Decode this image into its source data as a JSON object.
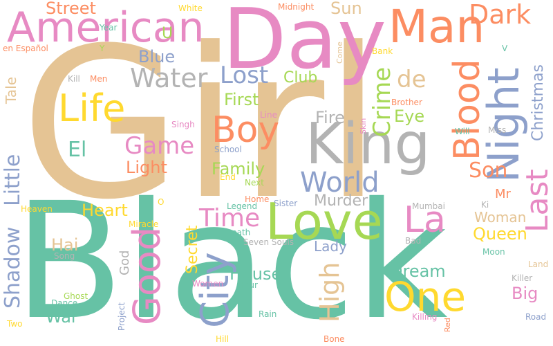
{
  "palette": [
    "#66c2a5",
    "#fc8d62",
    "#8da0cb",
    "#e78ac3",
    "#a6d854",
    "#ffd92f",
    "#e5c494",
    "#b3b3b3"
  ],
  "words": [
    {
      "text": "Girl",
      "color": "#e5c494"
    },
    {
      "text": "Black",
      "color": "#66c2a5"
    },
    {
      "text": "Day",
      "color": "#e78ac3"
    },
    {
      "text": "King",
      "color": "#b3b3b3"
    },
    {
      "text": "Love",
      "color": "#a6d854"
    },
    {
      "text": "American",
      "color": "#e78ac3"
    },
    {
      "text": "Man",
      "color": "#fc8d62"
    },
    {
      "text": "Dark",
      "color": "#fc8d62"
    },
    {
      "text": "Night",
      "color": "#8da0cb"
    },
    {
      "text": "Blood",
      "color": "#fc8d62"
    },
    {
      "text": "Last",
      "color": "#e78ac3"
    },
    {
      "text": "Life",
      "color": "#ffd92f"
    },
    {
      "text": "Boy",
      "color": "#fc8d62"
    },
    {
      "text": "City",
      "color": "#8da0cb"
    },
    {
      "text": "Good",
      "color": "#e78ac3"
    },
    {
      "text": "One",
      "color": "#ffd92f"
    },
    {
      "text": "La",
      "color": "#e78ac3"
    },
    {
      "text": "World",
      "color": "#8da0cb"
    },
    {
      "text": "Water",
      "color": "#b3b3b3"
    },
    {
      "text": "Lost",
      "color": "#8da0cb"
    },
    {
      "text": "Crime",
      "color": "#a6d854"
    },
    {
      "text": "Time",
      "color": "#e78ac3"
    },
    {
      "text": "Game",
      "color": "#e78ac3"
    },
    {
      "text": "Son",
      "color": "#fc8d62"
    },
    {
      "text": "High",
      "color": "#e5c494"
    },
    {
      "text": "Little",
      "color": "#8da0cb"
    },
    {
      "text": "Shadow",
      "color": "#8da0cb"
    },
    {
      "text": "Secret",
      "color": "#ffd92f"
    },
    {
      "text": "House",
      "color": "#66c2a5"
    },
    {
      "text": "Dream",
      "color": "#66c2a5"
    },
    {
      "text": "Queen",
      "color": "#ffd92f"
    },
    {
      "text": "Street",
      "color": "#fc8d62"
    },
    {
      "text": "Sun",
      "color": "#e5c494"
    },
    {
      "text": "Blue",
      "color": "#8da0cb"
    },
    {
      "text": "de",
      "color": "#e5c494"
    },
    {
      "text": "El",
      "color": "#66c2a5"
    },
    {
      "text": "First",
      "color": "#a6d854"
    },
    {
      "text": "Club",
      "color": "#a6d854"
    },
    {
      "text": "Fire",
      "color": "#b3b3b3"
    },
    {
      "text": "Eye",
      "color": "#a6d854"
    },
    {
      "text": "Light",
      "color": "#fc8d62"
    },
    {
      "text": "Family",
      "color": "#a6d854"
    },
    {
      "text": "Heart",
      "color": "#ffd92f"
    },
    {
      "text": "Murder",
      "color": "#b3b3b3"
    },
    {
      "text": "Woman",
      "color": "#e5c494"
    },
    {
      "text": "Lady",
      "color": "#8da0cb"
    },
    {
      "text": "Hai",
      "color": "#e5c494"
    },
    {
      "text": "Big",
      "color": "#e78ac3"
    },
    {
      "text": "War",
      "color": "#66c2a5"
    },
    {
      "text": "Christmas",
      "color": "#8da0cb"
    },
    {
      "text": "Tale",
      "color": "#e5c494"
    },
    {
      "text": "U",
      "color": "#a6d854"
    },
    {
      "text": "Mr",
      "color": "#fc8d62"
    },
    {
      "text": "God",
      "color": "#b3b3b3"
    },
    {
      "text": "White",
      "color": "#ffd92f"
    },
    {
      "text": "Midnight",
      "color": "#fc8d62"
    },
    {
      "text": "Year",
      "color": "#66c2a5"
    },
    {
      "text": "en Español",
      "color": "#fc8d62"
    },
    {
      "text": "Y",
      "color": "#a6d854"
    },
    {
      "text": "Come",
      "color": "#e5c494"
    },
    {
      "text": "Bank",
      "color": "#ffd92f"
    },
    {
      "text": "V",
      "color": "#66c2a5"
    },
    {
      "text": "Kill",
      "color": "#b3b3b3"
    },
    {
      "text": "Men",
      "color": "#fc8d62"
    },
    {
      "text": "Brother",
      "color": "#fc8d62"
    },
    {
      "text": "Line",
      "color": "#e78ac3"
    },
    {
      "text": "Skin",
      "color": "#e78ac3"
    },
    {
      "text": "Singh",
      "color": "#e78ac3"
    },
    {
      "text": "Will",
      "color": "#66c2a5"
    },
    {
      "text": "Miss",
      "color": "#b3b3b3"
    },
    {
      "text": "School",
      "color": "#8da0cb"
    },
    {
      "text": "End",
      "color": "#ffd92f"
    },
    {
      "text": "Next",
      "color": "#a6d854"
    },
    {
      "text": "Home",
      "color": "#fc8d62"
    },
    {
      "text": "Sister",
      "color": "#8da0cb"
    },
    {
      "text": "Heaven",
      "color": "#ffd92f"
    },
    {
      "text": "O",
      "color": "#ffd92f"
    },
    {
      "text": "Legend",
      "color": "#66c2a5"
    },
    {
      "text": "Mumbai",
      "color": "#b3b3b3"
    },
    {
      "text": "Ki",
      "color": "#b3b3b3"
    },
    {
      "text": "Miracle",
      "color": "#ffd92f"
    },
    {
      "text": "Death",
      "color": "#66c2a5"
    },
    {
      "text": "Seven Souls",
      "color": "#b3b3b3"
    },
    {
      "text": "Bad",
      "color": "#b3b3b3"
    },
    {
      "text": "Moon",
      "color": "#66c2a5"
    },
    {
      "text": "Song",
      "color": "#b3b3b3"
    },
    {
      "text": "Land",
      "color": "#e5c494"
    },
    {
      "text": "Killer",
      "color": "#b3b3b3"
    },
    {
      "text": "Women",
      "color": "#e78ac3"
    },
    {
      "text": "Hour",
      "color": "#66c2a5"
    },
    {
      "text": "Ghost",
      "color": "#a6d854"
    },
    {
      "text": "Dance",
      "color": "#66c2a5"
    },
    {
      "text": "Project",
      "color": "#8da0cb"
    },
    {
      "text": "Rain",
      "color": "#66c2a5"
    },
    {
      "text": "Killing",
      "color": "#e78ac3"
    },
    {
      "text": "Road",
      "color": "#8da0cb"
    },
    {
      "text": "Two",
      "color": "#ffd92f"
    },
    {
      "text": "Red",
      "color": "#fc8d62"
    },
    {
      "text": "Hill",
      "color": "#ffd92f"
    },
    {
      "text": "Bone",
      "color": "#fc8d62"
    }
  ]
}
